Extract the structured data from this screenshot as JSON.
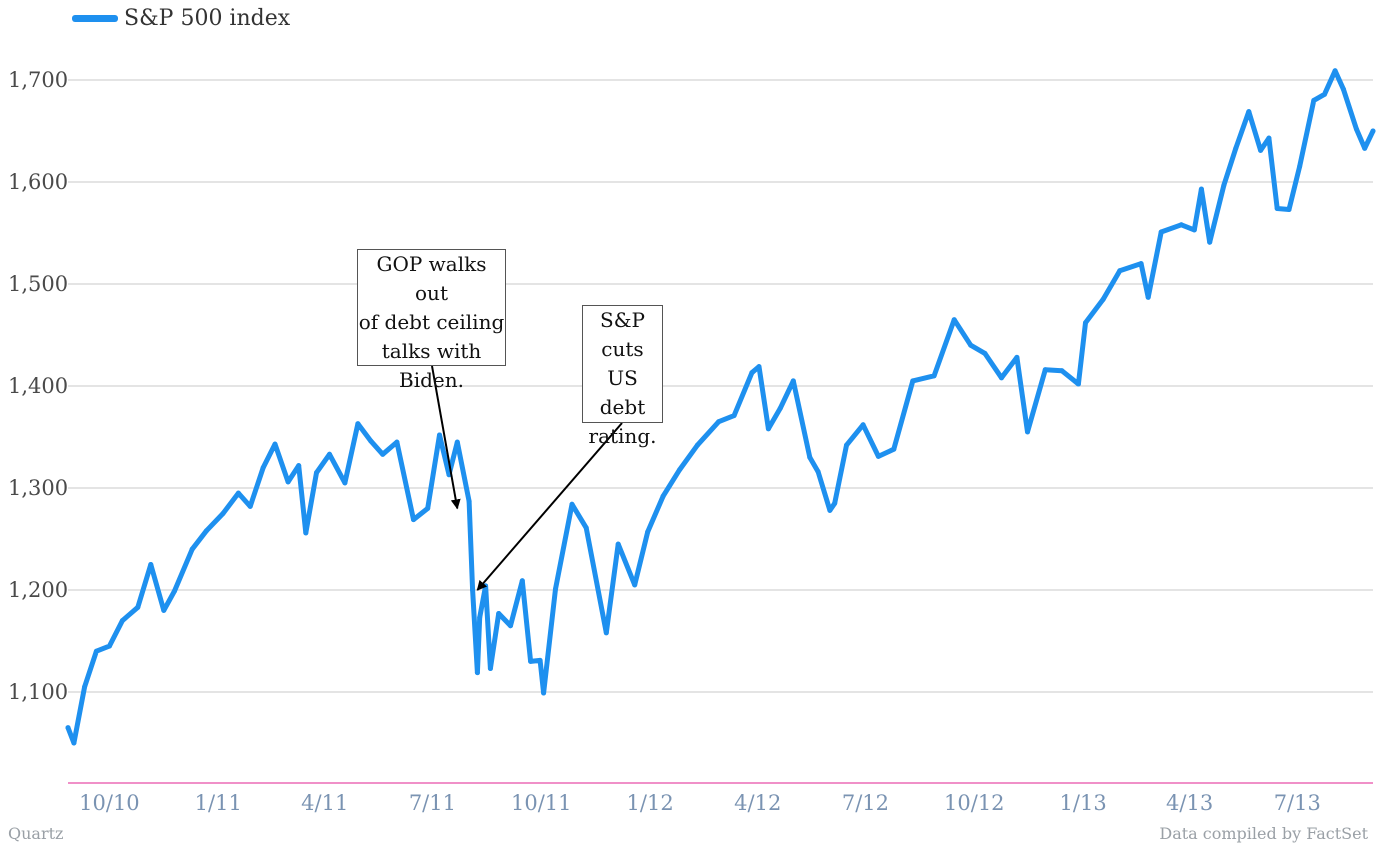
{
  "chart_data": {
    "type": "line",
    "title": "",
    "xlabel": "",
    "ylabel": "",
    "legend": "top-left",
    "grid": true,
    "ylim": [
      1030,
      1712
    ],
    "x_ticks": [
      "10/10",
      "1/11",
      "4/11",
      "7/11",
      "10/11",
      "1/12",
      "4/12",
      "7/12",
      "10/12",
      "1/13",
      "4/13",
      "7/13"
    ],
    "y_ticks": [
      "1,100",
      "1,200",
      "1,300",
      "1,400",
      "1,500",
      "1,600",
      "1,700"
    ],
    "y_tick_values": [
      1100,
      1200,
      1300,
      1400,
      1500,
      1600,
      1700
    ],
    "series": [
      {
        "name": "S&P 500 index",
        "color": "#1e90ef",
        "x": [
          "2010-08-27",
          "2010-09-01",
          "2010-09-10",
          "2010-09-20",
          "2010-10-01",
          "2010-10-12",
          "2010-10-25",
          "2010-11-05",
          "2010-11-16",
          "2010-11-25",
          "2010-12-10",
          "2010-12-22",
          "2011-01-05",
          "2011-01-18",
          "2011-01-28",
          "2011-02-08",
          "2011-02-18",
          "2011-03-01",
          "2011-03-10",
          "2011-03-16",
          "2011-03-25",
          "2011-04-05",
          "2011-04-18",
          "2011-04-29",
          "2011-05-10",
          "2011-05-20",
          "2011-06-01",
          "2011-06-15",
          "2011-06-27",
          "2011-07-07",
          "2011-07-15",
          "2011-07-22",
          "2011-08-01",
          "2011-08-04",
          "2011-08-08",
          "2011-08-10",
          "2011-08-15",
          "2011-08-19",
          "2011-08-26",
          "2011-09-05",
          "2011-09-15",
          "2011-09-22",
          "2011-09-30",
          "2011-10-03",
          "2011-10-13",
          "2011-10-27",
          "2011-11-08",
          "2011-11-25",
          "2011-12-05",
          "2011-12-19",
          "2011-12-30",
          "2012-01-12",
          "2012-01-26",
          "2012-02-10",
          "2012-02-28",
          "2012-03-12",
          "2012-03-27",
          "2012-04-02",
          "2012-04-10",
          "2012-04-20",
          "2012-05-01",
          "2012-05-15",
          "2012-05-22",
          "2012-06-01",
          "2012-06-05",
          "2012-06-15",
          "2012-06-29",
          "2012-07-12",
          "2012-07-25",
          "2012-08-10",
          "2012-08-28",
          "2012-09-14",
          "2012-09-28",
          "2012-10-10",
          "2012-10-24",
          "2012-11-06",
          "2012-11-15",
          "2012-11-30",
          "2012-12-14",
          "2012-12-28",
          "2013-01-03",
          "2013-01-18",
          "2013-02-01",
          "2013-02-19",
          "2013-02-25",
          "2013-03-08",
          "2013-03-25",
          "2013-04-05",
          "2013-04-11",
          "2013-04-18",
          "2013-04-30",
          "2013-05-10",
          "2013-05-21",
          "2013-05-31",
          "2013-06-07",
          "2013-06-14",
          "2013-06-24",
          "2013-07-03",
          "2013-07-15",
          "2013-07-24",
          "2013-08-02",
          "2013-08-09",
          "2013-08-20",
          "2013-08-27",
          "2013-09-03"
        ],
        "values": [
          1065,
          1050,
          1105,
          1140,
          1145,
          1170,
          1183,
          1225,
          1180,
          1199,
          1240,
          1258,
          1275,
          1295,
          1282,
          1320,
          1343,
          1306,
          1322,
          1256,
          1315,
          1333,
          1305,
          1363,
          1346,
          1333,
          1345,
          1269,
          1280,
          1352,
          1313,
          1345,
          1287,
          1200,
          1119,
          1173,
          1204,
          1123,
          1177,
          1165,
          1209,
          1130,
          1131,
          1099,
          1201,
          1284,
          1261,
          1158,
          1245,
          1205,
          1257,
          1292,
          1318,
          1342,
          1365,
          1371,
          1413,
          1419,
          1358,
          1378,
          1405,
          1330,
          1316,
          1278,
          1285,
          1342,
          1362,
          1331,
          1338,
          1405,
          1410,
          1465,
          1440,
          1432,
          1408,
          1428,
          1355,
          1416,
          1415,
          1402,
          1462,
          1485,
          1513,
          1520,
          1487,
          1551,
          1558,
          1553,
          1593,
          1541,
          1597,
          1633,
          1669,
          1631,
          1643,
          1574,
          1573,
          1615,
          1680,
          1686,
          1709,
          1691,
          1652,
          1633,
          1650
        ]
      }
    ],
    "annotations": [
      {
        "text": "GOP walks out\nof debt ceiling\ntalks with\nBiden.",
        "date": "2011-07-22",
        "value": 1280
      },
      {
        "text": "S&P\ncuts US\ndebt\nrating.",
        "date": "2011-08-08",
        "value": 1200
      }
    ]
  },
  "footer": {
    "source_left": "Quartz",
    "source_right": "Data compiled by FactSet"
  }
}
